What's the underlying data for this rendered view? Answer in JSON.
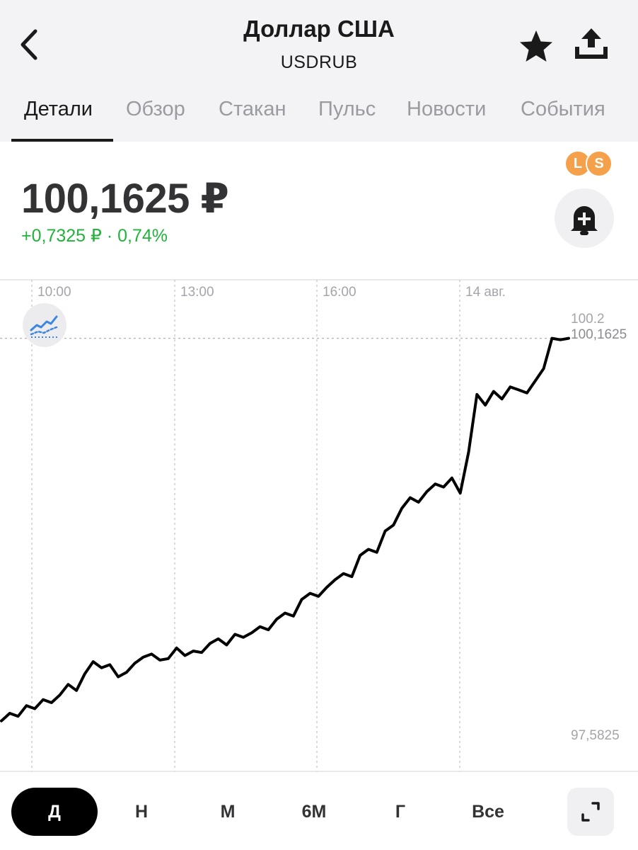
{
  "header": {
    "title": "Доллар США",
    "ticker": "USDRUB",
    "back_icon": "chevron-left-icon",
    "favorite_icon": "star-icon",
    "share_icon": "share-icon"
  },
  "tabs": [
    {
      "label": "Детали",
      "active": true
    },
    {
      "label": "Обзор"
    },
    {
      "label": "Стакан"
    },
    {
      "label": "Пульс"
    },
    {
      "label": "Новости"
    },
    {
      "label": "События"
    }
  ],
  "quote": {
    "price": "100,1625 ₽",
    "change": "+0,7325 ₽ · 0,74%",
    "change_color": "#21b33a",
    "badges": [
      "L",
      "S"
    ],
    "badge_color": "#f5a04a",
    "alert_icon": "bell-plus-icon"
  },
  "chart_data": {
    "type": "line",
    "x_ticks": [
      "10:00",
      "13:00",
      "16:00",
      "14 авг."
    ],
    "y_max_label": "100.2",
    "y_min_label": "97,5825",
    "current_value_label": "100,1625",
    "ylim": [
      97.5825,
      100.2
    ],
    "grid": true,
    "line_color": "#000000",
    "y": [
      97.64,
      97.69,
      97.67,
      97.74,
      97.72,
      97.78,
      97.76,
      97.81,
      97.88,
      97.84,
      97.95,
      98.03,
      97.99,
      98.01,
      97.93,
      97.96,
      98.02,
      98.06,
      98.08,
      98.04,
      98.05,
      98.12,
      98.07,
      98.1,
      98.09,
      98.15,
      98.18,
      98.14,
      98.21,
      98.19,
      98.22,
      98.26,
      98.24,
      98.31,
      98.35,
      98.33,
      98.44,
      98.48,
      98.46,
      98.52,
      98.57,
      98.61,
      98.59,
      98.73,
      98.77,
      98.75,
      98.89,
      98.93,
      99.04,
      99.11,
      99.08,
      99.15,
      99.2,
      99.18,
      99.24,
      99.14,
      99.41,
      99.79,
      99.72,
      99.81,
      99.76,
      99.84,
      99.82,
      99.8,
      99.88,
      99.96,
      100.16,
      100.15,
      100.16
    ]
  },
  "trend_icon": "trend-line-icon",
  "periods": [
    {
      "label": "Д",
      "active": true
    },
    {
      "label": "Н"
    },
    {
      "label": "М"
    },
    {
      "label": "6М"
    },
    {
      "label": "Г"
    },
    {
      "label": "Все"
    }
  ],
  "expand_icon": "expand-icon"
}
